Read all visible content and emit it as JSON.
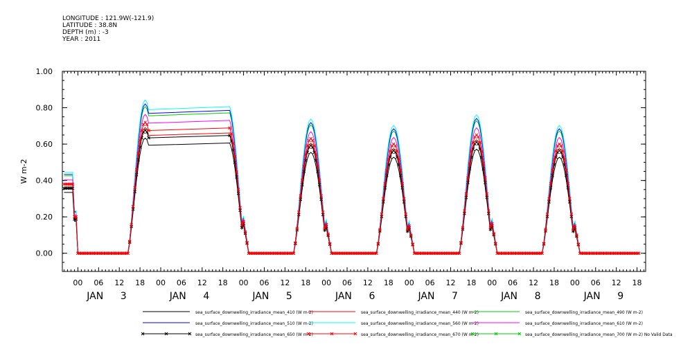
{
  "header": {
    "lines": [
      "LONGITUDE : 121.9W(-121.9)",
      "LATITUDE : 38.8N",
      "DEPTH (m) : -3",
      "YEAR : 2011"
    ]
  },
  "chart_data": {
    "type": "line",
    "title": "",
    "xlabel": "",
    "ylabel": "W m-2",
    "ylim": [
      -0.1,
      1.0
    ],
    "xlim_hours": [
      -4.5,
      164.5
    ],
    "y_ticks": [
      "0.00",
      "0.20",
      "0.40",
      "0.60",
      "0.80",
      "1.00"
    ],
    "x_hour_tick_labels": [
      "00",
      "06",
      "12",
      "18",
      "00",
      "06",
      "12",
      "18",
      "00",
      "06",
      "12",
      "18",
      "00",
      "06",
      "12",
      "18",
      "00",
      "06",
      "12",
      "18",
      "00",
      "06",
      "12",
      "18",
      "00",
      "06",
      "12",
      "18"
    ],
    "x_day_labels": [
      "JAN 3",
      "JAN 4",
      "JAN 5",
      "JAN 6",
      "JAN 7",
      "JAN 8",
      "JAN 9"
    ],
    "grid": false,
    "legend_position": "bottom",
    "day_peaks": [
      0.72,
      0.7,
      0.63,
      0.6,
      0.65,
      0.6
    ],
    "series": [
      {
        "name": "sea_surface_downwelling_irradiance_mean_410 (W m-2)",
        "color": "#000000",
        "scale": 0.88,
        "marker": "none"
      },
      {
        "name": "sea_surface_downwelling_irradiance_mean_440 (W m-2)",
        "color": "#ff0000",
        "scale": 0.96,
        "marker": "none"
      },
      {
        "name": "sea_surface_downwelling_irradiance_mean_490 (W m-2)",
        "color": "#00cc00",
        "scale": 1.12,
        "marker": "none"
      },
      {
        "name": "sea_surface_downwelling_irradiance_mean_510 (W m-2)",
        "color": "#0000ff",
        "scale": 1.14,
        "marker": "none"
      },
      {
        "name": "sea_surface_downwelling_irradiance_mean_560 (W m-2)",
        "color": "#00ffff",
        "scale": 1.17,
        "marker": "none"
      },
      {
        "name": "sea_surface_downwelling_irradiance_mean_610 (W m-2)",
        "color": "#ff00ff",
        "scale": 1.06,
        "marker": "none"
      },
      {
        "name": "sea_surface_downwelling_irradiance_mean_650 (W m-2)",
        "color": "#000000",
        "scale": 0.94,
        "marker": "x"
      },
      {
        "name": "sea_surface_downwelling_irradiance_mean_670 (W m-2)",
        "color": "#ff0000",
        "scale": 1.0,
        "marker": "x"
      },
      {
        "name": "sea_surface_downwelling_irradiance_mean_700 (W m-2) No Valid Data",
        "color": "#00cc00",
        "scale": 0,
        "marker": "x"
      }
    ]
  }
}
